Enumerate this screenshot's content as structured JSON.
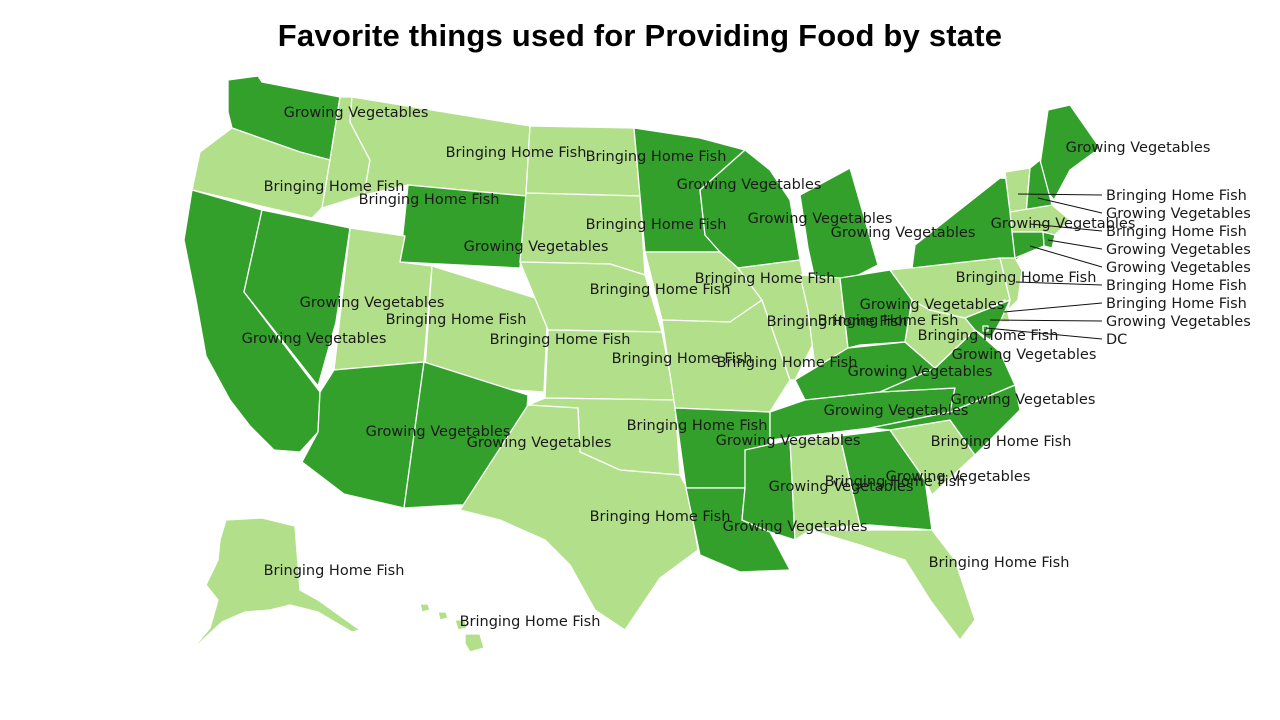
{
  "title": "Favorite things used for Providing Food by state",
  "colors": {
    "Growing Vegetables": "#33a02c",
    "Bringing Home Fish": "#b2df8a"
  },
  "states": [
    {
      "code": "WA",
      "value": "Growing Vegetables"
    },
    {
      "code": "OR",
      "value": "Bringing Home Fish"
    },
    {
      "code": "CA",
      "value": "Growing Vegetables"
    },
    {
      "code": "ID",
      "value": "Bringing Home Fish"
    },
    {
      "code": "NV",
      "value": "Growing Vegetables"
    },
    {
      "code": "MT",
      "value": "Bringing Home Fish"
    },
    {
      "code": "WY",
      "value": "Growing Vegetables"
    },
    {
      "code": "UT",
      "value": "Bringing Home Fish"
    },
    {
      "code": "CO",
      "value": "Bringing Home Fish"
    },
    {
      "code": "AZ",
      "value": "Growing Vegetables"
    },
    {
      "code": "NM",
      "value": "Growing Vegetables"
    },
    {
      "code": "ND",
      "value": "Bringing Home Fish"
    },
    {
      "code": "SD",
      "value": "Bringing Home Fish"
    },
    {
      "code": "NE",
      "value": "Bringing Home Fish"
    },
    {
      "code": "KS",
      "value": "Bringing Home Fish"
    },
    {
      "code": "OK",
      "value": "Bringing Home Fish"
    },
    {
      "code": "TX",
      "value": "Bringing Home Fish"
    },
    {
      "code": "MN",
      "value": "Growing Vegetables"
    },
    {
      "code": "IA",
      "value": "Bringing Home Fish"
    },
    {
      "code": "MO",
      "value": "Bringing Home Fish"
    },
    {
      "code": "AR",
      "value": "Growing Vegetables"
    },
    {
      "code": "LA",
      "value": "Growing Vegetables"
    },
    {
      "code": "WI",
      "value": "Growing Vegetables"
    },
    {
      "code": "IL",
      "value": "Bringing Home Fish"
    },
    {
      "code": "MI",
      "value": "Growing Vegetables"
    },
    {
      "code": "IN",
      "value": "Bringing Home Fish"
    },
    {
      "code": "OH",
      "value": "Growing Vegetables"
    },
    {
      "code": "KY",
      "value": "Growing Vegetables"
    },
    {
      "code": "TN",
      "value": "Growing Vegetables"
    },
    {
      "code": "MS",
      "value": "Growing Vegetables"
    },
    {
      "code": "AL",
      "value": "Bringing Home Fish"
    },
    {
      "code": "GA",
      "value": "Growing Vegetables"
    },
    {
      "code": "FL",
      "value": "Bringing Home Fish"
    },
    {
      "code": "SC",
      "value": "Bringing Home Fish"
    },
    {
      "code": "NC",
      "value": "Growing Vegetables"
    },
    {
      "code": "VA",
      "value": "Growing Vegetables"
    },
    {
      "code": "WV",
      "value": "Bringing Home Fish"
    },
    {
      "code": "PA",
      "value": "Bringing Home Fish"
    },
    {
      "code": "NY",
      "value": "Growing Vegetables"
    },
    {
      "code": "ME",
      "value": "Growing Vegetables"
    },
    {
      "code": "VT",
      "value": "Bringing Home Fish"
    },
    {
      "code": "NH",
      "value": "Growing Vegetables"
    },
    {
      "code": "MA",
      "value": "Bringing Home Fish"
    },
    {
      "code": "RI",
      "value": "Growing Vegetables"
    },
    {
      "code": "CT",
      "value": "Growing Vegetables"
    },
    {
      "code": "NJ",
      "value": "Bringing Home Fish"
    },
    {
      "code": "DE",
      "value": "Bringing Home Fish"
    },
    {
      "code": "MD",
      "value": "Growing Vegetables"
    },
    {
      "code": "DC",
      "value": "Growing Vegetables"
    },
    {
      "code": "AK",
      "value": "Bringing Home Fish"
    },
    {
      "code": "HI",
      "value": "Bringing Home Fish"
    }
  ],
  "callout_labels": [
    "Bringing Home Fish",
    "Growing Vegetables",
    "Bringing Home Fish",
    "Growing Vegetables",
    "Growing Vegetables",
    "Bringing Home Fish",
    "Bringing Home Fish",
    "Growing Vegetables",
    "DC"
  ]
}
